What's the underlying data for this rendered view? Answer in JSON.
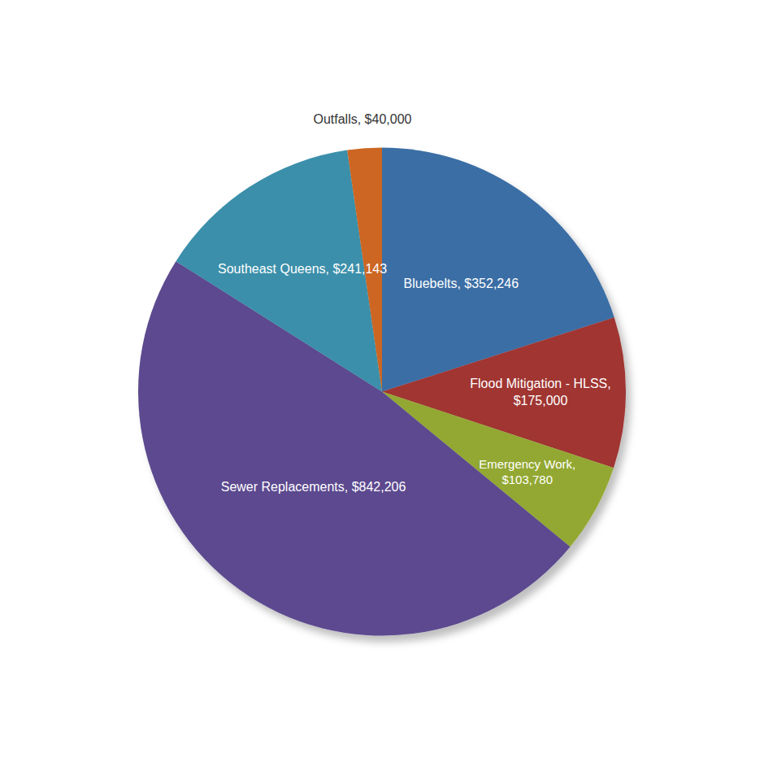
{
  "chart_data": {
    "type": "pie",
    "categories": [
      "Bluebelts, $352,246",
      "Flood Mitigation - HLSS,\n$175,000",
      "Emergency Work,\n$103,780",
      "Sewer Replacements, $842,206",
      "Southeast Queens, $241,143",
      "Outfalls, $40,000"
    ],
    "values": [
      352246,
      175000,
      103780,
      842206,
      241143,
      40000
    ],
    "colors": [
      "#3A6EA5",
      "#A03530",
      "#93A832",
      "#5B4A8F",
      "#3A8FAA",
      "#CC6622"
    ]
  }
}
